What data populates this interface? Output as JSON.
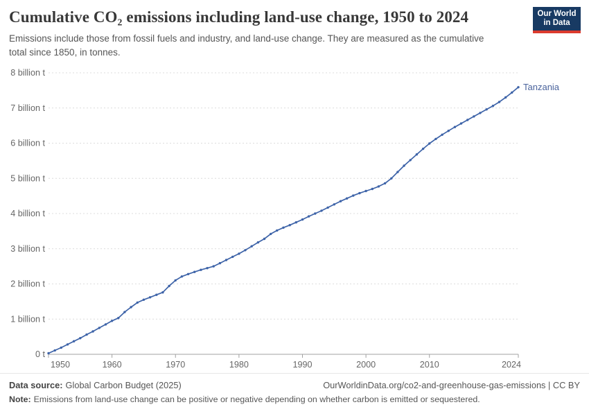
{
  "header": {
    "title": "Cumulative CO₂ emissions including land-use change, 1950 to 2024",
    "subtitle": "Emissions include those from fossil fuels and industry, and land-use change. They are measured as the cumulative total since 1850, in tonnes.",
    "logo": {
      "line1": "Our World",
      "line2": "in Data"
    }
  },
  "chart_data": {
    "type": "line",
    "title": "Cumulative CO₂ emissions including land-use change, 1950 to 2024",
    "xlabel": "",
    "ylabel": "",
    "xlim": [
      1950,
      2024
    ],
    "ylim": [
      0,
      8
    ],
    "grid": true,
    "legend_position": "end-of-line",
    "x_ticks": [
      1950,
      1960,
      1970,
      1980,
      1990,
      2000,
      2010,
      2024
    ],
    "y_ticks": [
      {
        "value": 0,
        "label": "0 t"
      },
      {
        "value": 1,
        "label": "1 billion t"
      },
      {
        "value": 2,
        "label": "2 billion t"
      },
      {
        "value": 3,
        "label": "3 billion t"
      },
      {
        "value": 4,
        "label": "4 billion t"
      },
      {
        "value": 5,
        "label": "5 billion t"
      },
      {
        "value": 6,
        "label": "6 billion t"
      },
      {
        "value": 7,
        "label": "7 billion t"
      },
      {
        "value": 8,
        "label": "8 billion t"
      }
    ],
    "series": [
      {
        "name": "Tanzania",
        "color": "#3d63a8",
        "label_color": "#4a639c",
        "x": [
          1950,
          1951,
          1952,
          1953,
          1954,
          1955,
          1956,
          1957,
          1958,
          1959,
          1960,
          1961,
          1962,
          1963,
          1964,
          1965,
          1966,
          1967,
          1968,
          1969,
          1970,
          1971,
          1972,
          1973,
          1974,
          1975,
          1976,
          1977,
          1978,
          1979,
          1980,
          1981,
          1982,
          1983,
          1984,
          1985,
          1986,
          1987,
          1988,
          1989,
          1990,
          1991,
          1992,
          1993,
          1994,
          1995,
          1996,
          1997,
          1998,
          1999,
          2000,
          2001,
          2002,
          2003,
          2004,
          2005,
          2006,
          2007,
          2008,
          2009,
          2010,
          2011,
          2012,
          2013,
          2014,
          2015,
          2016,
          2017,
          2018,
          2019,
          2020,
          2021,
          2022,
          2023,
          2024
        ],
        "values": [
          0.03,
          0.11,
          0.19,
          0.28,
          0.37,
          0.46,
          0.56,
          0.65,
          0.75,
          0.85,
          0.95,
          1.03,
          1.2,
          1.34,
          1.47,
          1.55,
          1.62,
          1.69,
          1.76,
          1.94,
          2.1,
          2.21,
          2.28,
          2.34,
          2.4,
          2.45,
          2.5,
          2.59,
          2.68,
          2.77,
          2.86,
          2.96,
          3.07,
          3.18,
          3.28,
          3.42,
          3.52,
          3.6,
          3.67,
          3.75,
          3.83,
          3.92,
          4.0,
          4.08,
          4.17,
          4.26,
          4.35,
          4.43,
          4.51,
          4.58,
          4.64,
          4.7,
          4.77,
          4.86,
          5.0,
          5.18,
          5.36,
          5.52,
          5.68,
          5.84,
          5.99,
          6.12,
          6.24,
          6.35,
          6.46,
          6.56,
          6.66,
          6.76,
          6.86,
          6.96,
          7.06,
          7.17,
          7.3,
          7.44,
          7.59
        ]
      }
    ],
    "unit_short": "billion t"
  },
  "footer": {
    "datasource_label": "Data source:",
    "datasource_text": "Global Carbon Budget (2025)",
    "link": "OurWorldinData.org/co2-and-greenhouse-gas-emissions | CC BY",
    "note_label": "Note:",
    "note_text": "Emissions from land-use change can be positive or negative depending on whether carbon is emitted or sequestered."
  },
  "colors": {
    "gridline": "#dcdcdc",
    "axis": "#a1a1a1",
    "tick_label": "#666666"
  }
}
